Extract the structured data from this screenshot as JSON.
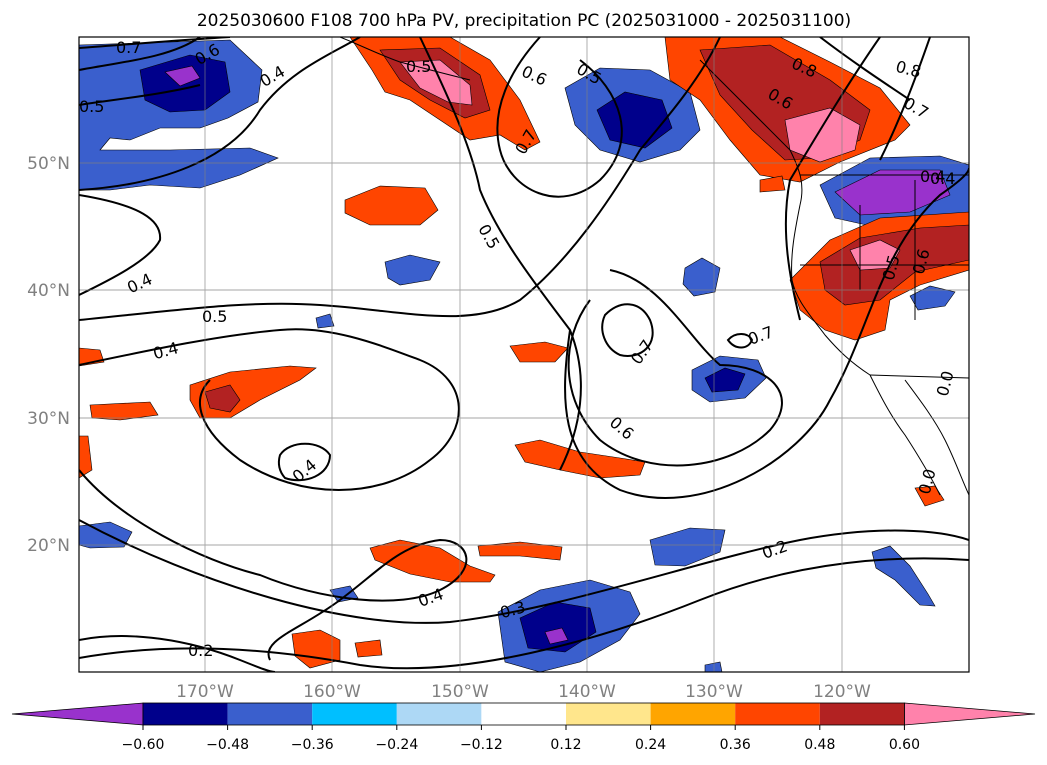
{
  "title": "2025030600 F108 700 hPa PV, precipitation PC (2025031000 - 2025031100)",
  "map": {
    "lat_labels": [
      "50°N",
      "40°N",
      "30°N",
      "20°N"
    ],
    "lon_labels": [
      "170°W",
      "160°W",
      "150°W",
      "140°W",
      "130°W",
      "120°W"
    ],
    "contour_labels": [
      "0.7",
      "0.6",
      "0.5",
      "0.4",
      "0.5",
      "0.6",
      "0.5",
      "0.8",
      "0.8",
      "0.6",
      "0.7",
      "0.7",
      "0.5",
      "0.4",
      "0.4",
      "0.5",
      "0.4",
      "0.7",
      "0.7",
      "0.6",
      "0.4",
      "0.4",
      "0.3",
      "0.2",
      "0.2",
      "0.0",
      "0.0",
      "0.4",
      "0.6",
      "0.5"
    ]
  },
  "colorbar": {
    "tick_labels": [
      "−0.60",
      "−0.48",
      "−0.36",
      "−0.24",
      "−0.12",
      "0.12",
      "0.24",
      "0.36",
      "0.48",
      "0.60"
    ],
    "colors": [
      "#9932cc",
      "#00008b",
      "#3a5fcd",
      "#00bfff",
      "#add8f5",
      "#ffffff",
      "#ffe68c",
      "#ffa500",
      "#ff4500",
      "#b22222",
      "#ff82ab"
    ]
  }
}
